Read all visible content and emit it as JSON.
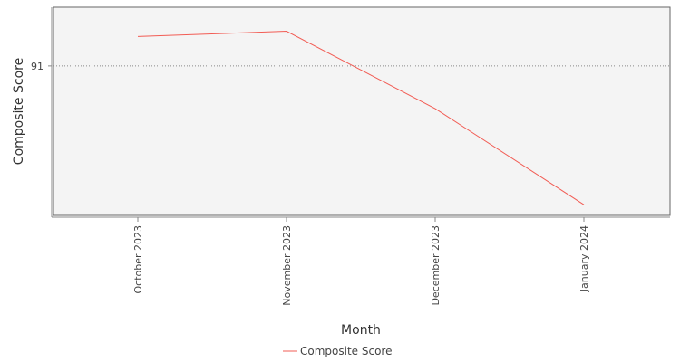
{
  "chart_data": {
    "type": "line",
    "title": "",
    "xlabel": "Month",
    "ylabel": "Composite Score",
    "categories": [
      "October 2023",
      "November 2023",
      "December 2023",
      "January 2024"
    ],
    "series": [
      {
        "name": "Composite Score",
        "values": [
          91.55,
          91.65,
          90.2,
          88.4
        ],
        "color": "#f25c54"
      }
    ],
    "y_ticks": [
      91
    ],
    "ylim": [
      88.2,
      92.1
    ],
    "grid": "horizontal dotted at ticks",
    "legend_position": "bottom-center",
    "colors": {
      "plot_background": "#f4f4f4",
      "frame": "#666666",
      "gridline": "#888888"
    }
  }
}
